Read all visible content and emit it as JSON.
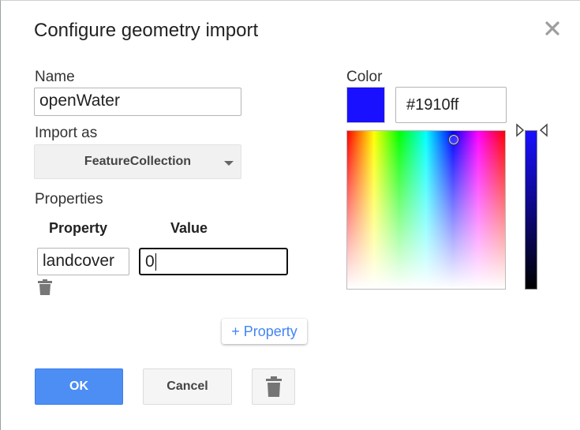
{
  "dialog": {
    "title": "Configure geometry import",
    "close_icon": "close-icon"
  },
  "name": {
    "label": "Name",
    "value": "openWater"
  },
  "import_as": {
    "label": "Import as",
    "selected": "FeatureCollection"
  },
  "properties": {
    "label": "Properties",
    "col_property": "Property",
    "col_value": "Value",
    "rows": [
      {
        "property": "landcover",
        "value": "0"
      }
    ],
    "add_label": "+ Property"
  },
  "color": {
    "label": "Color",
    "hex": "#1910ff",
    "swatch": "#1910ff"
  },
  "buttons": {
    "ok": "OK",
    "cancel": "Cancel"
  }
}
